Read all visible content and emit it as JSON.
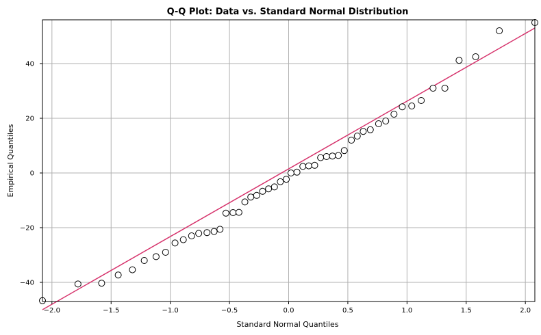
{
  "chart_data": {
    "type": "scatter",
    "title": "Q-Q Plot: Data vs. Standard Normal Distribution",
    "xlabel": "Standard Normal Quantiles",
    "ylabel": "Empirical Quantiles",
    "xlim": [
      -2.08,
      2.08
    ],
    "ylim": [
      -47,
      56
    ],
    "xticks": [
      -2.0,
      -1.5,
      -1.0,
      -0.5,
      0.0,
      0.5,
      1.0,
      1.5,
      2.0
    ],
    "xtick_labels": [
      "−2.0",
      "−1.5",
      "−1.0",
      "−0.5",
      "0.0",
      "0.5",
      "1.0",
      "1.5",
      "2.0"
    ],
    "yticks": [
      -40,
      -20,
      0,
      20,
      40
    ],
    "ytick_labels": [
      "−40",
      "−20",
      "0",
      "20",
      "40"
    ],
    "grid": true,
    "points_color": "#000000",
    "line_color": "#d6336c",
    "reference_line": {
      "x": [
        -2.08,
        2.08
      ],
      "y": [
        -50.0,
        53.0
      ]
    },
    "points": {
      "x": [
        -2.08,
        -1.78,
        -1.58,
        -1.44,
        -1.32,
        -1.22,
        -1.12,
        -1.04,
        -0.96,
        -0.89,
        -0.82,
        -0.76,
        -0.69,
        -0.63,
        -0.58,
        -0.53,
        -0.47,
        -0.42,
        -0.37,
        -0.32,
        -0.27,
        -0.22,
        -0.17,
        -0.12,
        -0.07,
        -0.02,
        0.02,
        0.07,
        0.12,
        0.17,
        0.22,
        0.27,
        0.32,
        0.37,
        0.42,
        0.47,
        0.53,
        0.58,
        0.63,
        0.69,
        0.76,
        0.82,
        0.89,
        0.96,
        1.04,
        1.12,
        1.22,
        1.32,
        1.44,
        1.58,
        1.78,
        2.08
      ],
      "y": [
        -46.7,
        -40.6,
        -40.3,
        -37.3,
        -35.4,
        -32.0,
        -30.6,
        -29.0,
        -25.6,
        -24.4,
        -23.0,
        -22.1,
        -21.8,
        -21.4,
        -20.6,
        -14.7,
        -14.5,
        -14.4,
        -10.6,
        -8.8,
        -8.2,
        -6.7,
        -5.8,
        -5.1,
        -3.2,
        -2.3,
        0.0,
        0.3,
        2.4,
        2.6,
        2.8,
        5.6,
        6.0,
        6.2,
        6.4,
        8.2,
        12.0,
        13.5,
        15.2,
        15.8,
        18.0,
        19.0,
        21.5,
        24.2,
        24.5,
        26.5,
        31.0,
        31.0,
        41.2,
        42.5,
        52.0,
        55.0
      ]
    }
  }
}
